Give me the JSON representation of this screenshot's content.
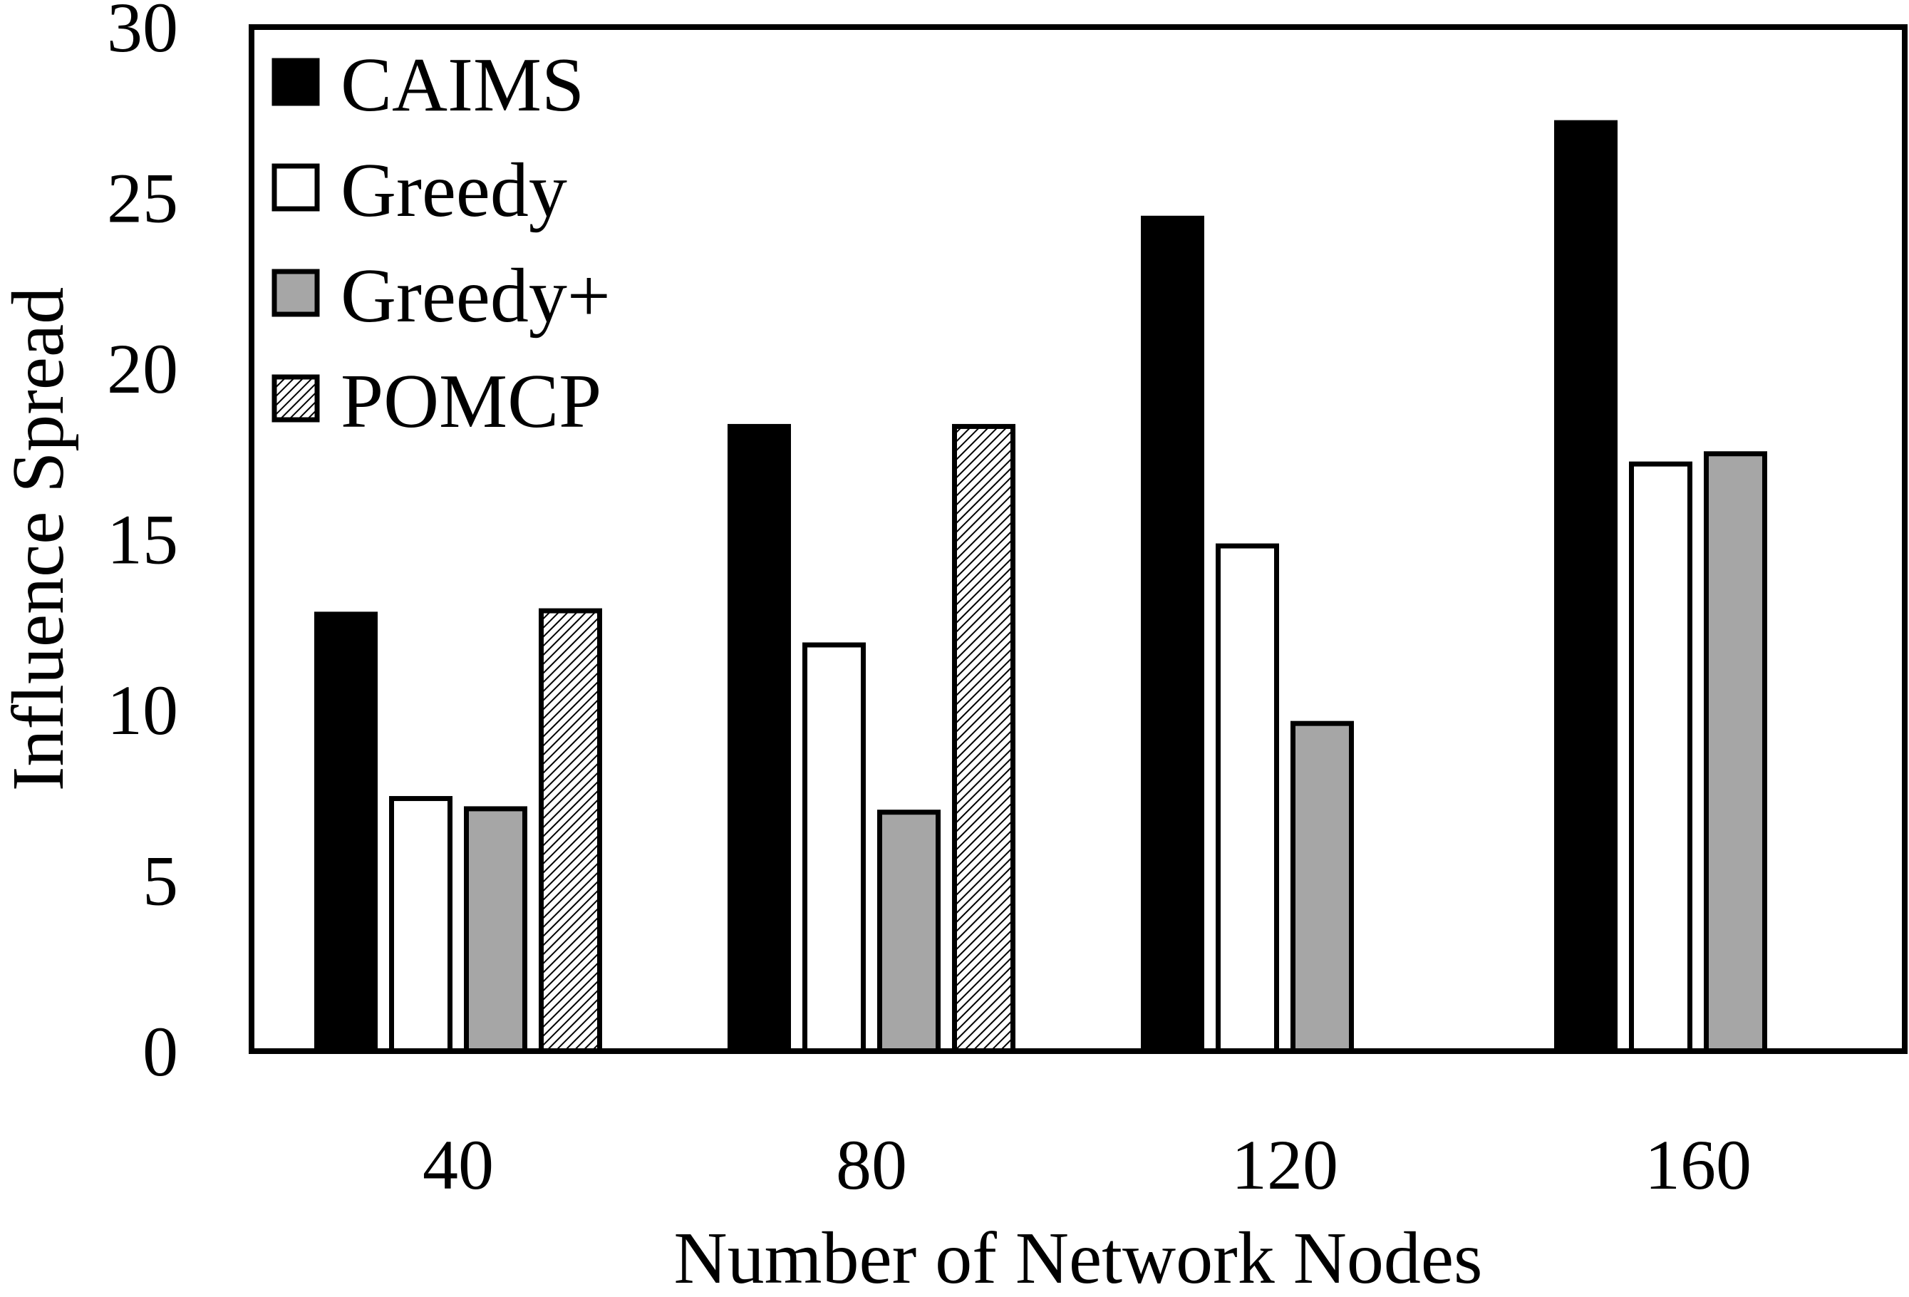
{
  "chart_data": {
    "type": "bar",
    "xlabel": "Number of Network Nodes",
    "ylabel": "Influence Spread",
    "categories": [
      "40",
      "80",
      "120",
      "160"
    ],
    "ylim": [
      0,
      30
    ],
    "yticks": [
      "0",
      "5",
      "10",
      "15",
      "20",
      "25",
      "30"
    ],
    "grid": false,
    "legend_position": "top-left",
    "series": [
      {
        "name": "CAIMS",
        "style": "solid-black",
        "values": [
          12.8,
          18.3,
          24.4,
          27.2
        ]
      },
      {
        "name": "Greedy",
        "style": "white",
        "values": [
          7.4,
          11.9,
          14.8,
          17.2
        ]
      },
      {
        "name": "Greedy+",
        "style": "gray",
        "values": [
          7.1,
          7.0,
          9.6,
          17.5
        ]
      },
      {
        "name": "POMCP",
        "style": "hatched",
        "values": [
          12.9,
          18.3,
          null,
          null
        ]
      }
    ],
    "colors": {
      "black": "#000000",
      "white": "#ffffff",
      "gray": "#a6a6a6",
      "outline": "#000000"
    }
  }
}
